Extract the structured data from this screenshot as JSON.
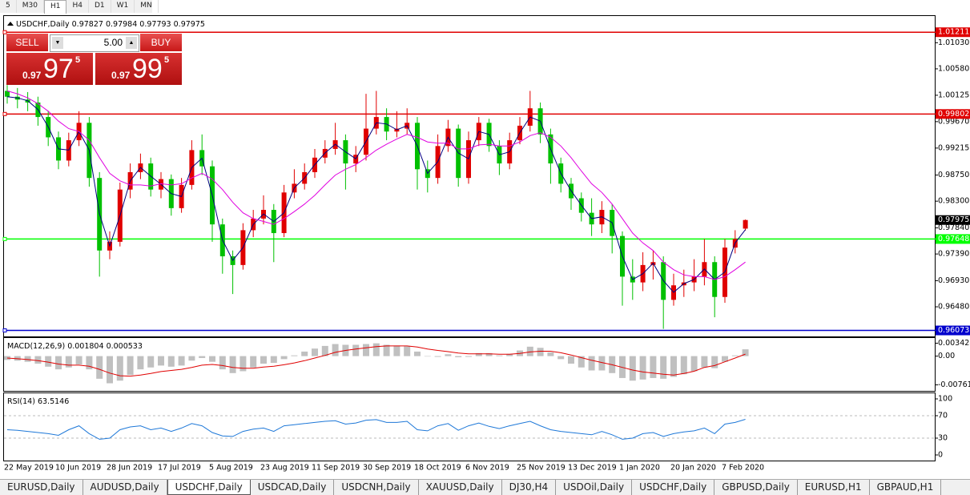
{
  "toolbar": {
    "timeframes": [
      "5",
      "M30",
      "H1",
      "H4",
      "D1",
      "W1",
      "MN"
    ]
  },
  "trade_panel": {
    "sell": "SELL",
    "lot": "5.00",
    "buy": "BUY",
    "bid": {
      "big": "0.97",
      "pips": "97",
      "frac": "5"
    },
    "ask": {
      "big": "0.97",
      "pips": "99",
      "frac": "5"
    }
  },
  "tabs": [
    "EURUSD,Daily",
    "AUDUSD,Daily",
    "USDCHF,Daily",
    "USDCAD,Daily",
    "USDCNH,Daily",
    "XAUUSD,Daily",
    "DJ30,H4",
    "USDOil,Daily",
    "USDCHF,Daily",
    "GBPUSD,Daily",
    "EURUSD,H1",
    "GBPAUD,H1"
  ],
  "chart_data": [
    {
      "type": "candlestick",
      "title": "USDCHF,Daily",
      "categories": [
        "22 May 2019",
        null,
        null,
        null,
        null,
        "10 Jun 2019",
        null,
        null,
        null,
        null,
        "28 Jun 2019",
        null,
        null,
        null,
        null,
        "17 Jul 2019",
        null,
        null,
        null,
        null,
        "5 Aug 2019",
        null,
        null,
        null,
        null,
        "23 Aug 2019",
        null,
        null,
        null,
        null,
        "11 Sep 2019",
        null,
        null,
        null,
        null,
        "30 Sep 2019",
        null,
        null,
        null,
        null,
        "18 Oct 2019",
        null,
        null,
        null,
        null,
        "6 Nov 2019",
        null,
        null,
        null,
        null,
        "25 Nov 2019",
        null,
        null,
        null,
        null,
        "13 Dec 2019",
        null,
        null,
        null,
        null,
        "1 Jan 2020",
        null,
        null,
        null,
        null,
        "20 Jan 2020",
        null,
        null,
        null,
        null,
        "7 Feb 2020",
        null,
        null
      ],
      "open": [
        1.002,
        1.001,
        1.0005,
        1.0,
        0.9975,
        0.994,
        0.99,
        0.9935,
        0.9965,
        0.987,
        0.9745,
        0.976,
        0.985,
        0.988,
        0.9895,
        0.985,
        0.9868,
        0.9818,
        0.9858,
        0.9918,
        0.989,
        0.979,
        0.9735,
        0.972,
        0.978,
        0.98,
        0.9815,
        0.9775,
        0.9845,
        0.986,
        0.988,
        0.9905,
        0.992,
        0.9935,
        0.9895,
        0.991,
        0.9955,
        0.9975,
        0.995,
        0.9955,
        0.9965,
        0.9885,
        0.987,
        0.9925,
        0.9955,
        0.987,
        0.9935,
        0.9965,
        0.9925,
        0.9895,
        0.9935,
        0.996,
        0.999,
        0.9945,
        0.9895,
        0.986,
        0.9835,
        0.981,
        0.979,
        0.9815,
        0.977,
        0.97,
        0.969,
        0.972,
        0.9725,
        0.966,
        0.9685,
        0.969,
        0.97,
        0.9725,
        0.9665,
        0.975,
        0.97827
      ],
      "high": [
        1.003,
        1.0025,
        1.0018,
        1.001,
        0.9985,
        0.995,
        0.9948,
        0.9985,
        0.9975,
        0.988,
        0.9778,
        0.9862,
        0.9895,
        0.9912,
        0.9905,
        0.988,
        0.9876,
        0.987,
        0.9935,
        0.9945,
        0.99,
        0.98,
        0.9745,
        0.9792,
        0.9815,
        0.984,
        0.9825,
        0.9858,
        0.9885,
        0.9895,
        0.992,
        0.9935,
        0.9965,
        0.9945,
        0.9925,
        1.0015,
        1.002,
        0.999,
        0.9985,
        0.999,
        0.9975,
        0.99,
        0.9945,
        0.997,
        0.9962,
        0.995,
        0.9975,
        0.9972,
        0.9935,
        0.9948,
        0.9975,
        1.002,
        1.0,
        0.9955,
        0.9905,
        0.987,
        0.9845,
        0.9835,
        0.983,
        0.9825,
        0.9778,
        0.973,
        0.9742,
        0.9745,
        0.9735,
        0.9705,
        0.9712,
        0.973,
        0.9765,
        0.9735,
        0.9765,
        0.978,
        0.97984
      ],
      "low": [
        0.9998,
        0.999,
        0.9985,
        0.996,
        0.9925,
        0.9885,
        0.989,
        0.9925,
        0.9855,
        0.97,
        0.973,
        0.9752,
        0.9835,
        0.9868,
        0.9838,
        0.9835,
        0.9805,
        0.981,
        0.985,
        0.9875,
        0.976,
        0.9705,
        0.967,
        0.9712,
        0.9768,
        0.979,
        0.9725,
        0.9768,
        0.9835,
        0.985,
        0.987,
        0.9895,
        0.991,
        0.985,
        0.988,
        0.99,
        0.9945,
        0.9935,
        0.994,
        0.9945,
        0.985,
        0.9845,
        0.986,
        0.9915,
        0.9855,
        0.986,
        0.9925,
        0.9915,
        0.9875,
        0.9885,
        0.9928,
        0.995,
        0.993,
        0.986,
        0.9845,
        0.9815,
        0.9795,
        0.977,
        0.9775,
        0.974,
        0.965,
        0.966,
        0.9675,
        0.9695,
        0.961,
        0.965,
        0.9665,
        0.9675,
        0.9685,
        0.963,
        0.9655,
        0.974,
        0.97793
      ],
      "close": [
        1.001,
        1.0005,
        1.0,
        0.9975,
        0.994,
        0.99,
        0.9935,
        0.9965,
        0.987,
        0.9745,
        0.976,
        0.985,
        0.988,
        0.9895,
        0.985,
        0.9868,
        0.9818,
        0.9858,
        0.9918,
        0.989,
        0.979,
        0.9735,
        0.972,
        0.978,
        0.98,
        0.9815,
        0.9775,
        0.9845,
        0.986,
        0.988,
        0.9905,
        0.992,
        0.9935,
        0.9895,
        0.991,
        0.9955,
        0.9975,
        0.995,
        0.9955,
        0.9965,
        0.9885,
        0.987,
        0.9925,
        0.9955,
        0.987,
        0.9935,
        0.9965,
        0.9925,
        0.9895,
        0.9935,
        0.996,
        0.999,
        0.9945,
        0.9895,
        0.986,
        0.9835,
        0.981,
        0.979,
        0.9815,
        0.977,
        0.97,
        0.969,
        0.972,
        0.9725,
        0.966,
        0.9685,
        0.969,
        0.97,
        0.9725,
        0.9665,
        0.975,
        0.9765,
        0.97975
      ],
      "up_color": "#e00000",
      "down_color": "#00c000",
      "series": [
        {
          "color": "#000080",
          "values": [
            1.001,
            1.0008,
            1.0003,
            0.9988,
            0.9958,
            0.992,
            0.9918,
            0.995,
            0.9918,
            0.9808,
            0.9753,
            0.9805,
            0.9865,
            0.9888,
            0.9873,
            0.9859,
            0.9843,
            0.9838,
            0.9888,
            0.9904,
            0.984,
            0.9763,
            0.9728,
            0.975,
            0.979,
            0.9808,
            0.9795,
            0.981,
            0.9853,
            0.987,
            0.9893,
            0.9913,
            0.9928,
            0.9915,
            0.9903,
            0.9933,
            0.9965,
            0.9963,
            0.9953,
            0.996,
            0.9925,
            0.9878,
            0.9898,
            0.994,
            0.9913,
            0.9903,
            0.995,
            0.9945,
            0.991,
            0.9915,
            0.9948,
            0.9975,
            0.9968,
            0.992,
            0.9878,
            0.9848,
            0.9823,
            0.98,
            0.9803,
            0.9793,
            0.9735,
            0.9695,
            0.9705,
            0.9723,
            0.9693,
            0.9673,
            0.9688,
            0.9695,
            0.9713,
            0.9695,
            0.9708,
            0.9758,
            0.9781
          ]
        },
        {
          "color": "#e000e0",
          "values": [
            1.002,
            1.0015,
            1.0008,
            0.9998,
            0.9985,
            0.9968,
            0.9955,
            0.995,
            0.9935,
            0.9905,
            0.9878,
            0.9865,
            0.9858,
            0.9858,
            0.9856,
            0.986,
            0.9858,
            0.986,
            0.987,
            0.9878,
            0.9868,
            0.985,
            0.9828,
            0.981,
            0.98,
            0.9795,
            0.979,
            0.98,
            0.9812,
            0.9825,
            0.984,
            0.9858,
            0.9875,
            0.9885,
            0.9893,
            0.9905,
            0.9918,
            0.9928,
            0.9937,
            0.9945,
            0.994,
            0.9932,
            0.993,
            0.993,
            0.992,
            0.992,
            0.9927,
            0.9928,
            0.9925,
            0.9925,
            0.9932,
            0.9943,
            0.9948,
            0.994,
            0.9925,
            0.9905,
            0.9882,
            0.986,
            0.9845,
            0.9825,
            0.98,
            0.9775,
            0.9758,
            0.9745,
            0.9725,
            0.9712,
            0.9703,
            0.97,
            0.97,
            0.9695,
            0.97,
            0.9712,
            0.9725
          ]
        }
      ],
      "levels": [
        {
          "value": 1.01211,
          "color": "#e00000"
        },
        {
          "value": 0.99802,
          "color": "#e00000"
        },
        {
          "value": 0.97648,
          "color": "#00ff00"
        },
        {
          "value": 0.96073,
          "color": "#0000cd"
        }
      ],
      "ylim": [
        0.9597,
        1.0149
      ],
      "yticks": [
        {
          "value": 1.0103,
          "label": "1.01030"
        },
        {
          "value": 1.0058,
          "label": "1.00580"
        },
        1.00125,
        {
          "value": 0.9967,
          "label": "0.99670"
        },
        0.99215,
        {
          "value": 0.9875,
          "label": "0.98750"
        },
        {
          "value": 0.983,
          "label": "0.98300"
        },
        {
          "value": 0.9784,
          "label": "0.97840"
        },
        {
          "value": 0.9739,
          "label": "0.97390"
        },
        {
          "value": 0.9693,
          "label": "0.96930"
        },
        {
          "value": 0.9648,
          "label": "0.96480"
        }
      ]
    },
    {
      "type": "macd",
      "title": "MACD(12,26,9)",
      "series": [
        {
          "color": "#c0c0c0",
          "style": "bar",
          "values": [
            -0.001,
            -0.0012,
            -0.0015,
            -0.002,
            -0.0028,
            -0.0035,
            -0.003,
            -0.0022,
            -0.0035,
            -0.006,
            -0.0072,
            -0.0065,
            -0.005,
            -0.0035,
            -0.003,
            -0.0025,
            -0.0028,
            -0.0025,
            -0.0012,
            -0.0005,
            -0.0015,
            -0.0035,
            -0.0045,
            -0.004,
            -0.003,
            -0.002,
            -0.0018,
            -0.0008,
            0.0002,
            0.0012,
            0.002,
            0.0027,
            0.0032,
            0.003,
            0.003,
            0.0032,
            0.0034,
            0.003,
            0.0028,
            0.0026,
            0.0012,
            0.0,
            -0.0002,
            0.0005,
            -0.0003,
            -0.0002,
            0.0008,
            0.0008,
            0.0002,
            0.0006,
            0.0015,
            0.0025,
            0.0022,
            0.001,
            -0.0008,
            -0.002,
            -0.003,
            -0.0038,
            -0.0038,
            -0.0045,
            -0.0058,
            -0.0065,
            -0.0062,
            -0.0058,
            -0.006,
            -0.0055,
            -0.0048,
            -0.004,
            -0.003,
            -0.0032,
            -0.0015,
            0.0002,
            0.001804
          ]
        },
        {
          "color": "#e00000",
          "style": "line",
          "values": [
            -0.0005,
            -0.0007,
            -0.0009,
            -0.0012,
            -0.0016,
            -0.0021,
            -0.0024,
            -0.0024,
            -0.0027,
            -0.0035,
            -0.0045,
            -0.0052,
            -0.0053,
            -0.005,
            -0.0046,
            -0.0041,
            -0.0038,
            -0.0035,
            -0.003,
            -0.0024,
            -0.0022,
            -0.0025,
            -0.003,
            -0.0032,
            -0.0032,
            -0.0029,
            -0.0027,
            -0.0023,
            -0.0018,
            -0.0012,
            -0.0005,
            0.0002,
            0.001,
            0.0015,
            0.0019,
            0.0022,
            0.0025,
            0.0027,
            0.0027,
            0.0027,
            0.0024,
            0.0019,
            0.0015,
            0.0012,
            0.0008,
            0.0006,
            0.0006,
            0.0006,
            0.0005,
            0.0005,
            0.0007,
            0.0011,
            0.0013,
            0.0013,
            0.0009,
            0.0003,
            -0.0004,
            -0.0011,
            -0.0017,
            -0.0023,
            -0.003,
            -0.0037,
            -0.0042,
            -0.0045,
            -0.0048,
            -0.005,
            -0.0046,
            -0.004,
            -0.003,
            -0.0025,
            -0.0015,
            -0.0005,
            0.000533
          ]
        }
      ],
      "ylim": [
        -0.00921,
        0.0048
      ],
      "yticks": [
        0.003428,
        {
          "value": 0,
          "label": "0.00"
        },
        -0.007615
      ]
    },
    {
      "type": "line",
      "title": "RSI(14)",
      "series": [
        {
          "color": "#1e78d8",
          "values": [
            45,
            44,
            42,
            40,
            38,
            35,
            45,
            52,
            38,
            28,
            30,
            45,
            50,
            52,
            45,
            48,
            42,
            48,
            56,
            52,
            40,
            34,
            33,
            42,
            46,
            48,
            42,
            52,
            54,
            56,
            58,
            60,
            61,
            55,
            57,
            62,
            63,
            58,
            58,
            60,
            45,
            43,
            52,
            56,
            44,
            52,
            57,
            51,
            47,
            52,
            56,
            60,
            52,
            45,
            42,
            40,
            38,
            36,
            42,
            36,
            28,
            30,
            38,
            40,
            33,
            38,
            41,
            43,
            48,
            38,
            55,
            58,
            63.5146
          ]
        }
      ],
      "levels": [
        70,
        30
      ],
      "ylim": [
        -10,
        110
      ],
      "yticks": [
        100,
        70,
        30,
        0
      ]
    }
  ]
}
